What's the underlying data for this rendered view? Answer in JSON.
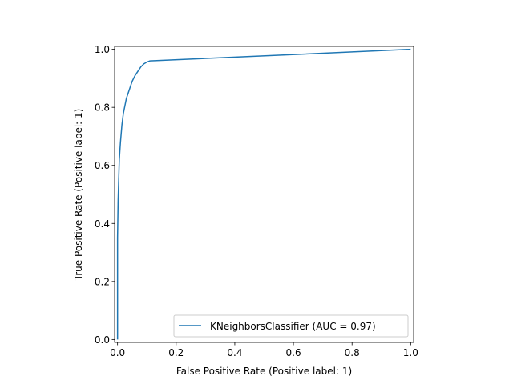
{
  "chart_data": {
    "type": "line",
    "title": "",
    "xlabel": "False Positive Rate (Positive label: 1)",
    "ylabel": "True Positive Rate (Positive label: 1)",
    "xlim": [
      -0.01,
      1.01
    ],
    "ylim": [
      -0.01,
      1.01
    ],
    "xticks": [
      0.0,
      0.2,
      0.4,
      0.6,
      0.8,
      1.0
    ],
    "xtick_labels": [
      "0.0",
      "0.2",
      "0.4",
      "0.6",
      "0.8",
      "1.0"
    ],
    "yticks": [
      0.0,
      0.2,
      0.4,
      0.6,
      0.8,
      1.0
    ],
    "ytick_labels": [
      "0.0",
      "0.2",
      "0.4",
      "0.6",
      "0.8",
      "1.0"
    ],
    "grid": false,
    "legend_position": "lower-right",
    "series": [
      {
        "name": "KNeighborsClassifier (AUC = 0.97)",
        "color": "#1f77b4",
        "x": [
          0.0,
          0.0,
          0.002,
          0.004,
          0.006,
          0.01,
          0.015,
          0.02,
          0.03,
          0.04,
          0.05,
          0.06,
          0.07,
          0.08,
          0.09,
          0.1,
          0.11,
          1.0
        ],
        "y": [
          0.0,
          0.35,
          0.48,
          0.55,
          0.62,
          0.68,
          0.74,
          0.78,
          0.83,
          0.86,
          0.89,
          0.91,
          0.925,
          0.94,
          0.95,
          0.956,
          0.96,
          1.0
        ]
      }
    ]
  }
}
